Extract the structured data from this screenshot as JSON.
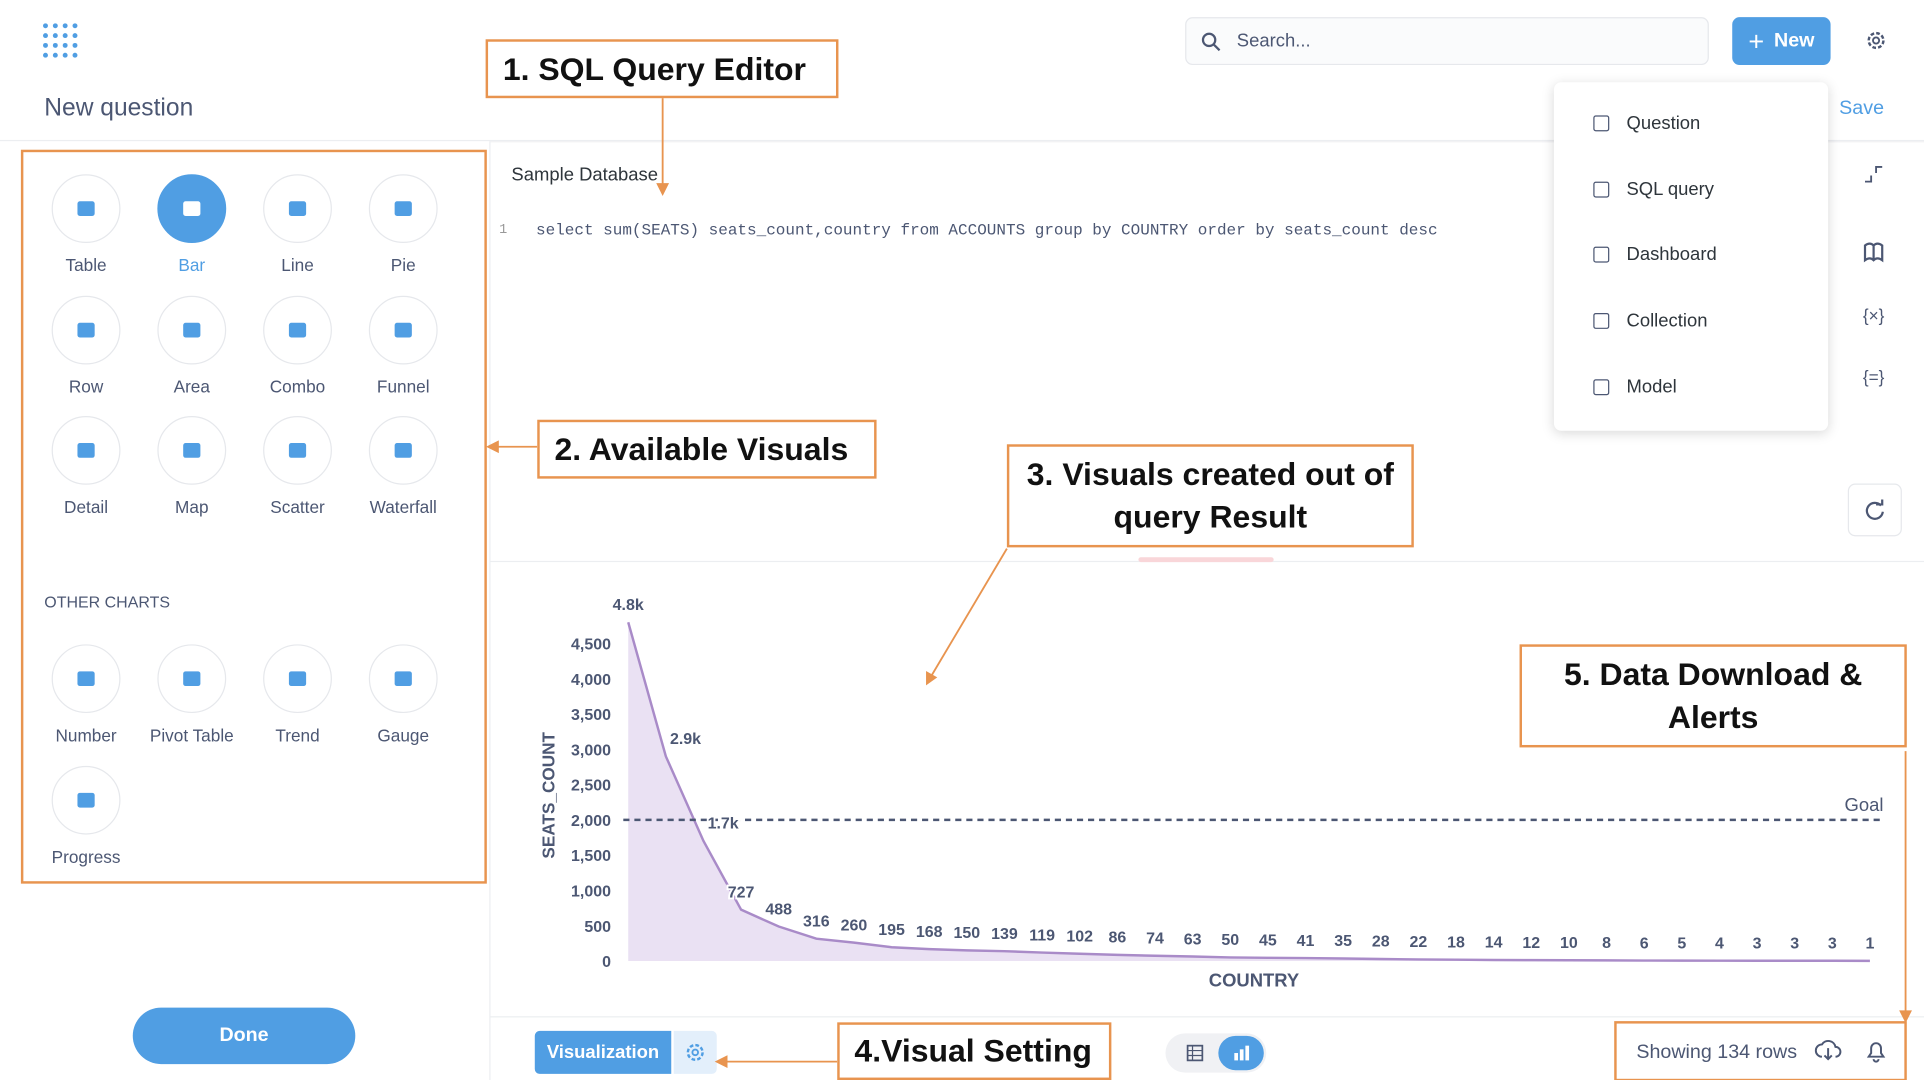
{
  "header": {
    "title": "New question",
    "search_placeholder": "Search...",
    "new_button": "New",
    "save": "Save"
  },
  "new_menu": [
    "Question",
    "SQL query",
    "Dashboard",
    "Collection",
    "Model"
  ],
  "visuals": [
    "Table",
    "Bar",
    "Line",
    "Pie",
    "Row",
    "Area",
    "Combo",
    "Funnel",
    "Detail",
    "Map",
    "Scatter",
    "Waterfall"
  ],
  "selected_visual": "Bar",
  "other_charts_heading": "OTHER CHARTS",
  "other_charts": [
    "Number",
    "Pivot Table",
    "Trend",
    "Gauge",
    "Progress"
  ],
  "done": "Done",
  "editor": {
    "database": "Sample Database",
    "line_number": 1,
    "query": "select sum(SEATS) seats_count,country from ACCOUNTS group by COUNTRY order by seats_count desc"
  },
  "result_chart": {
    "type": "area",
    "x_label": "COUNTRY",
    "y_label": "SEATS_COUNT",
    "categories": [
      null,
      null,
      null,
      null,
      null,
      null,
      null,
      null,
      null,
      null,
      null,
      null,
      null,
      null,
      null,
      null,
      null,
      null,
      null,
      null,
      null,
      null,
      null,
      null,
      null,
      null,
      null,
      null,
      null,
      null,
      null,
      null,
      null,
      null
    ],
    "values": [
      4800,
      2900,
      1700,
      727,
      488,
      316,
      260,
      195,
      168,
      150,
      139,
      119,
      102,
      86,
      74,
      63,
      50,
      45,
      41,
      35,
      28,
      22,
      18,
      14,
      12,
      10,
      8,
      6,
      5,
      4,
      3,
      3,
      3,
      1
    ],
    "value_labels": [
      "4.8k",
      "2.9k",
      "1.7k",
      "727",
      "488",
      "316",
      "260",
      "195",
      "168",
      "150",
      "139",
      "119",
      "102",
      "86",
      "74",
      "63",
      "50",
      "45",
      "41",
      "35",
      "28",
      "22",
      "18",
      "14",
      "12",
      "10",
      "8",
      "6",
      "5",
      "4",
      "3",
      "3",
      "3",
      "1"
    ],
    "color": "#a98bc8",
    "ylim": [
      0,
      4800
    ],
    "yticks": [
      0,
      500,
      {
        "value": 1000,
        "label": "1,000"
      },
      {
        "value": 1500,
        "label": "1,500"
      },
      {
        "value": 2000,
        "label": "2,000"
      },
      {
        "value": 2500,
        "label": "2,500"
      },
      {
        "value": 3000,
        "label": "3,000"
      },
      {
        "value": 3500,
        "label": "3,500"
      },
      {
        "value": 4000,
        "label": "4,000"
      },
      {
        "value": 4500,
        "label": "4,500"
      }
    ],
    "goal": {
      "value": 2000,
      "label": "Goal"
    }
  },
  "footer": {
    "visualization": "Visualization",
    "row_count": "Showing 134 rows"
  },
  "annotations": [
    "1. SQL Query Editor",
    "2. Available Visuals",
    "3. Visuals created out of query Result",
    "5. Data Download & Alerts",
    "4.Visual Setting"
  ]
}
